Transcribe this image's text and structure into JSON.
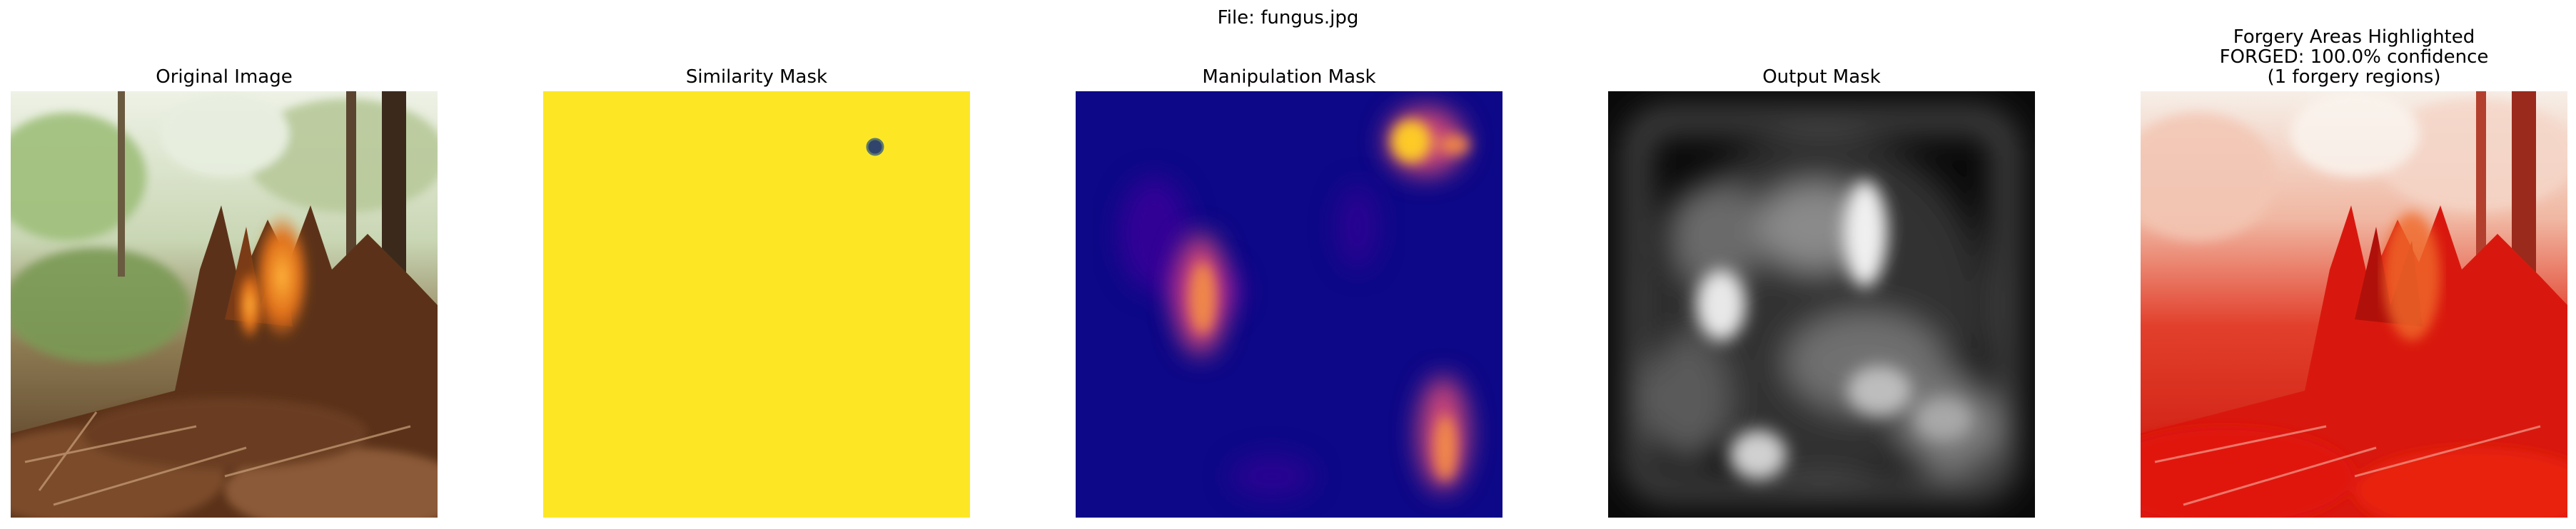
{
  "figure": {
    "suptitle": "File: fungus.jpg"
  },
  "panels": [
    {
      "title_lines": [
        "Original Image"
      ],
      "icon": "forest-stump-photo-icon"
    },
    {
      "title_lines": [
        "Similarity Mask"
      ],
      "icon": "similarity-heatmap-icon",
      "colors": {
        "background": "#fde725",
        "dot": "#31446b"
      }
    },
    {
      "title_lines": [
        "Manipulation Mask"
      ],
      "icon": "manipulation-heatmap-icon",
      "colors": {
        "background": "#0d0887",
        "hot": "#fdca26",
        "warm": "#cc4778",
        "cool": "#6a00a8"
      }
    },
    {
      "title_lines": [
        "Output Mask"
      ],
      "icon": "grayscale-mask-icon",
      "colors": {
        "background": "#0a0a0a",
        "highlight": "#ffffff"
      }
    },
    {
      "title_lines": [
        "Forgery Areas Highlighted",
        "FORGED: 100.0% confidence",
        "(1 forgery regions)"
      ],
      "icon": "forgery-overlay-photo-icon",
      "colors": {
        "overlay": "#e0140c"
      }
    }
  ]
}
